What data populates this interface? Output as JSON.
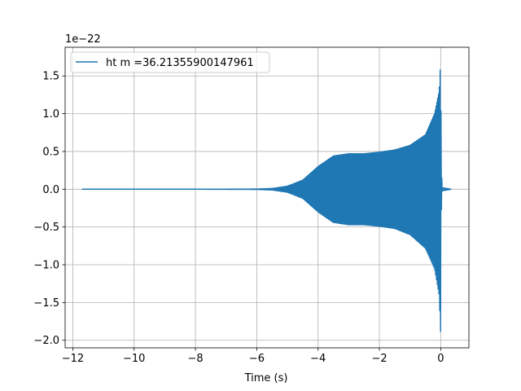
{
  "chart_data": {
    "type": "line",
    "title": "",
    "xlabel": "Time (s)",
    "ylabel": "",
    "y_offset_label": "1e−22",
    "xlim": [
      -12.25,
      0.92
    ],
    "ylim": [
      -2.1,
      1.88
    ],
    "x_ticks": [
      -12,
      -10,
      -8,
      -6,
      -4,
      -2,
      0
    ],
    "x_tick_labels": [
      "−12",
      "−10",
      "−8",
      "−6",
      "−4",
      "−2",
      "0"
    ],
    "y_ticks": [
      -2.0,
      -1.5,
      -1.0,
      -0.5,
      0.0,
      0.5,
      1.0,
      1.5
    ],
    "y_tick_labels": [
      "−2.0",
      "−1.5",
      "−1.0",
      "−0.5",
      "0.0",
      "0.5",
      "1.0",
      "1.5"
    ],
    "grid": true,
    "legend_position": "upper-left",
    "series": [
      {
        "name": "ht m =36.21355900147961",
        "color": "#1f77b4",
        "x_range": [
          -11.7,
          0.35
        ],
        "envelope": {
          "x": [
            -11.7,
            -8.0,
            -6.0,
            -5.5,
            -5.0,
            -4.5,
            -4.0,
            -3.5,
            -3.0,
            -2.5,
            -2.0,
            -1.5,
            -1.0,
            -0.5,
            -0.2,
            -0.05,
            0.0,
            0.02,
            0.05,
            0.35
          ],
          "upper": [
            0.0,
            0.0,
            0.003,
            0.01,
            0.04,
            0.12,
            0.3,
            0.44,
            0.47,
            0.47,
            0.49,
            0.52,
            0.58,
            0.72,
            1.0,
            1.3,
            1.72,
            0.3,
            0.02,
            0.0
          ],
          "lower": [
            0.0,
            0.0,
            -0.003,
            -0.01,
            -0.04,
            -0.12,
            -0.3,
            -0.44,
            -0.47,
            -0.47,
            -0.49,
            -0.52,
            -0.6,
            -0.78,
            -1.05,
            -1.4,
            -1.92,
            -0.3,
            -0.02,
            0.0
          ]
        }
      }
    ]
  }
}
